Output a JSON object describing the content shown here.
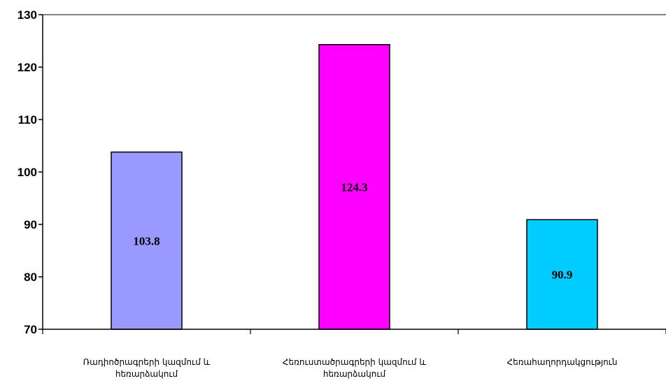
{
  "chart_data": {
    "type": "bar",
    "categories": [
      [
        "Ռադիոծրագրերի կազմում և",
        "հեռարձակում"
      ],
      [
        "Հեռուստածրագրերի կազմում և",
        "հեռարձակում"
      ],
      [
        "Հեռահաղորդակցություն"
      ]
    ],
    "values": [
      103.8,
      124.3,
      90.9
    ],
    "data_labels": [
      "103.8",
      "124.3",
      "90.9"
    ],
    "colors": [
      "#9999ff",
      "#ff00ff",
      "#00ccff"
    ],
    "ylim": [
      70,
      130
    ],
    "yticks": [
      70,
      80,
      90,
      100,
      110,
      120,
      130
    ],
    "grid": false,
    "legend": "none"
  }
}
